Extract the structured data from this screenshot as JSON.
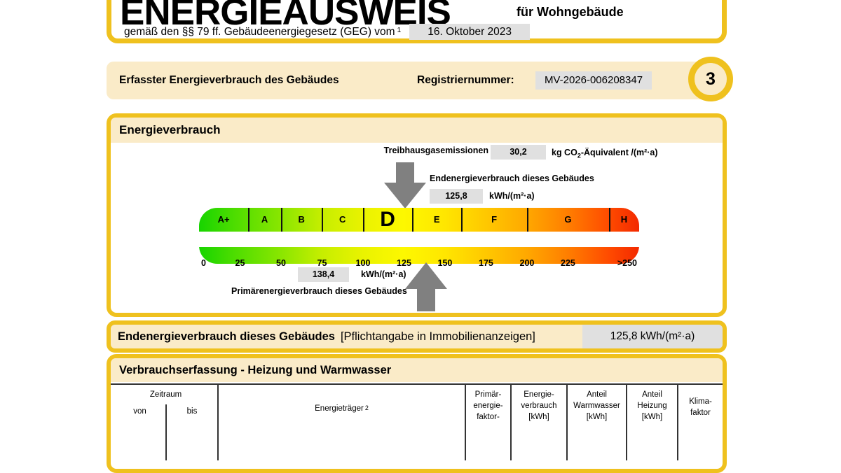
{
  "header": {
    "title": "ENERGIEAUSWEIS",
    "for_label": "für Wohngebäude",
    "law_text": "gemäß den §§ 79 ff. Gebäudeenergiegesetz (GEG) vom",
    "law_footnote": "1",
    "law_date": "16. Oktober 2023"
  },
  "registry": {
    "section_title": "Erfasster Energieverbrauch des Gebäudes",
    "label": "Registriernummer:",
    "value": "MV-2026-006208347",
    "page_badge": "3"
  },
  "energy": {
    "section_title": "Energieverbrauch",
    "ghg": {
      "label": "Treibhausgasemissionen",
      "value": "30,2",
      "unit_prefix": "kg CO",
      "unit_sub": "2",
      "unit_suffix": "-Äquivalent /(m²·a)"
    },
    "end": {
      "label": "Endenergieverbrauch dieses Gebäudes",
      "value": "125,8",
      "unit": "kWh/(m²·a)"
    },
    "primary": {
      "label": "Primärenergieverbrauch dieses Gebäudes",
      "value": "138,4",
      "unit": "kWh/(m²·a)"
    }
  },
  "scale": {
    "type": "gauge",
    "axis_range": [
      0,
      250
    ],
    "classes": [
      {
        "label": "A+",
        "from": 0,
        "to": 30
      },
      {
        "label": "A",
        "from": 30,
        "to": 50
      },
      {
        "label": "B",
        "from": 50,
        "to": 75
      },
      {
        "label": "C",
        "from": 75,
        "to": 100
      },
      {
        "label": "D",
        "from": 100,
        "to": 130,
        "highlight": true
      },
      {
        "label": "E",
        "from": 130,
        "to": 160
      },
      {
        "label": "F",
        "from": 160,
        "to": 200
      },
      {
        "label": "G",
        "from": 200,
        "to": 250
      },
      {
        "label": "H",
        "from": 250,
        "to": 268.4
      }
    ],
    "ticks": [
      {
        "label": "0",
        "v": 0
      },
      {
        "label": "25",
        "v": 25
      },
      {
        "label": "50",
        "v": 50
      },
      {
        "label": "75",
        "v": 75
      },
      {
        "label": "100",
        "v": 100
      },
      {
        "label": "125",
        "v": 125
      },
      {
        "label": "150",
        "v": 150
      },
      {
        "label": "175",
        "v": 175
      },
      {
        "label": "200",
        "v": 200
      },
      {
        "label": "225",
        "v": 225
      },
      {
        "label": ">250",
        "v": 259
      }
    ],
    "gradient_colors": [
      "#17D400",
      "#8AE600",
      "#EAF300",
      "#FDF800",
      "#FFC800",
      "#FF7E00",
      "#F32900"
    ]
  },
  "banner": {
    "title": "Endenergieverbrauch dieses Gebäudes",
    "note": "[Pflichtangabe in Immobilienanzeigen]",
    "value": "125,8 kWh/(m²·a)"
  },
  "usage_table": {
    "title": "Verbrauchserfassung - Heizung und Warmwasser",
    "group_header": "Zeitraum",
    "col_von": "von",
    "col_bis": "bis",
    "energietraeger_label": "Energieträger",
    "energietraeger_sup": "2",
    "cols": [
      {
        "lines": [
          "Primär-",
          "energie-",
          "faktor-"
        ]
      },
      {
        "lines": [
          "Energie-",
          "verbrauch",
          "[kWh]"
        ]
      },
      {
        "lines": [
          "Anteil",
          "Warmwasser",
          "[kWh]"
        ]
      },
      {
        "lines": [
          "Anteil",
          "Heizung",
          "[kWh]"
        ]
      },
      {
        "lines": [
          "Klima-",
          "faktor"
        ]
      }
    ]
  },
  "colors": {
    "accent_gold": "#EFC11E",
    "cream": "#FAEBC8",
    "value_box_gray": "#E0E0E0",
    "arrow_gray": "#808080",
    "table_line": "#333333"
  }
}
